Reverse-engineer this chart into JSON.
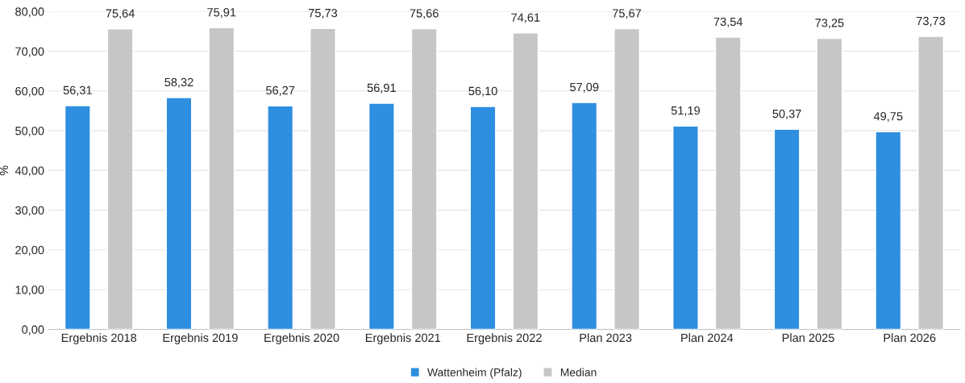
{
  "chart_data": {
    "type": "bar",
    "ylabel": "%",
    "categories": [
      "Ergebnis 2018",
      "Ergebnis 2019",
      "Ergebnis 2020",
      "Ergebnis 2021",
      "Ergebnis 2022",
      "Plan 2023",
      "Plan 2024",
      "Plan 2025",
      "Plan 2026"
    ],
    "series": [
      {
        "name": "Wattenheim (Pfalz)",
        "color": "#2e8ee0",
        "values": [
          56.31,
          58.32,
          56.27,
          56.91,
          56.1,
          57.09,
          51.19,
          50.37,
          49.75
        ],
        "value_labels": [
          "56,31",
          "58,32",
          "56,27",
          "56,91",
          "56,10",
          "57,09",
          "51,19",
          "50,37",
          "49,75"
        ]
      },
      {
        "name": "Median",
        "color": "#c6c6c6",
        "values": [
          75.64,
          75.91,
          75.73,
          75.66,
          74.61,
          75.67,
          73.54,
          73.25,
          73.73
        ],
        "value_labels": [
          "75,64",
          "75,91",
          "75,73",
          "75,66",
          "74,61",
          "75,67",
          "73,54",
          "73,25",
          "73,73"
        ]
      }
    ],
    "ylim": [
      0,
      80
    ],
    "yticks": [
      {
        "value": 0,
        "label": "0,00"
      },
      {
        "value": 10,
        "label": "10,00"
      },
      {
        "value": 20,
        "label": "20,00"
      },
      {
        "value": 30,
        "label": "30,00"
      },
      {
        "value": 40,
        "label": "40,00"
      },
      {
        "value": 50,
        "label": "50,00"
      },
      {
        "value": 60,
        "label": "60,00"
      },
      {
        "value": 70,
        "label": "70,00"
      },
      {
        "value": 80,
        "label": "80,00"
      }
    ],
    "grid": "y",
    "legend": "bottom"
  }
}
